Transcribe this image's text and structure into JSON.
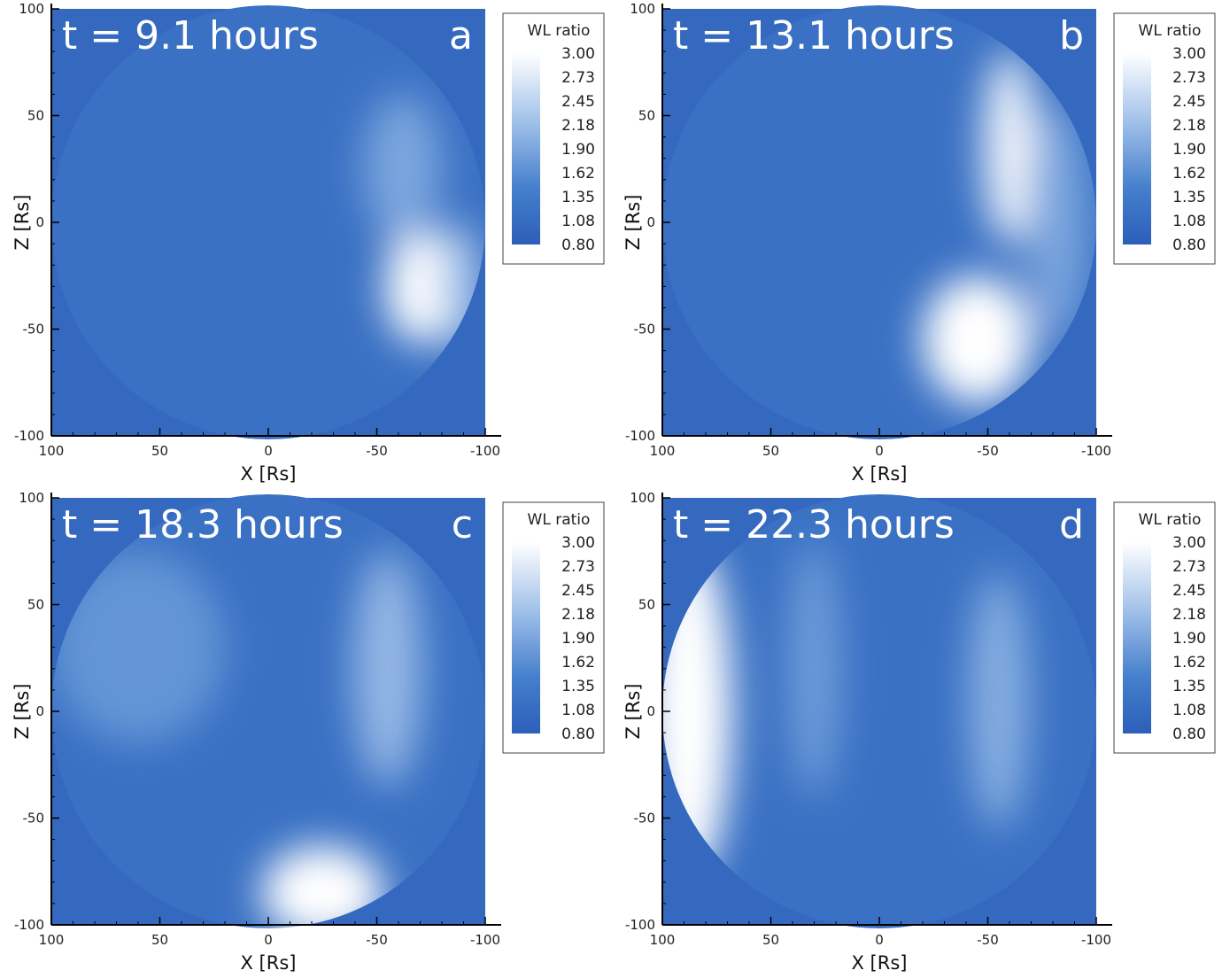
{
  "chart_data": [
    {
      "type": "heatmap",
      "panel": "a",
      "title": "t = 9.1 hours",
      "xlabel": "X [Rs]",
      "ylabel": "Z [Rs]",
      "xlim": [
        100,
        -100
      ],
      "ylim": [
        -100,
        100
      ],
      "xticks": [
        "100",
        "50",
        "0",
        "-50",
        "-100"
      ],
      "yticks": [
        "100",
        "50",
        "0",
        "-50",
        "-100"
      ],
      "colorbar": {
        "title": "WL ratio",
        "range": [
          0.8,
          3.0
        ],
        "labels": [
          "3.00",
          "2.73",
          "2.45",
          "2.18",
          "1.90",
          "1.62",
          "1.35",
          "1.08",
          "0.80"
        ]
      },
      "features": [
        {
          "x": -70,
          "z": -30,
          "rx": 16,
          "rz": 27,
          "value": 3.0
        },
        {
          "x": -62,
          "z": 25,
          "rx": 18,
          "rz": 35,
          "value": 1.9
        },
        {
          "x": -88,
          "z": -30,
          "rx": 10,
          "rz": 30,
          "value": 2.3
        }
      ]
    },
    {
      "type": "heatmap",
      "panel": "b",
      "title": "t = 13.1 hours",
      "xlabel": "X [Rs]",
      "ylabel": "Z [Rs]",
      "xlim": [
        100,
        -100
      ],
      "ylim": [
        -100,
        100
      ],
      "xticks": [
        "100",
        "50",
        "0",
        "-50",
        "-100"
      ],
      "yticks": [
        "100",
        "50",
        "0",
        "-50",
        "-100"
      ],
      "colorbar": {
        "title": "WL ratio",
        "range": [
          0.8,
          3.0
        ],
        "labels": [
          "3.00",
          "2.73",
          "2.45",
          "2.18",
          "1.90",
          "1.62",
          "1.35",
          "1.08",
          "0.80"
        ]
      },
      "features": [
        {
          "x": -45,
          "z": -55,
          "rx": 25,
          "rz": 30,
          "value": 3.0
        },
        {
          "x": -60,
          "z": 35,
          "rx": 12,
          "rz": 45,
          "value": 2.9
        },
        {
          "x": -82,
          "z": 0,
          "rx": 14,
          "rz": 55,
          "value": 1.9
        }
      ]
    },
    {
      "type": "heatmap",
      "panel": "c",
      "title": "t = 18.3 hours",
      "xlabel": "X [Rs]",
      "ylabel": "Z [Rs]",
      "xlim": [
        100,
        -100
      ],
      "ylim": [
        -100,
        100
      ],
      "xticks": [
        "100",
        "50",
        "0",
        "-50",
        "-100"
      ],
      "yticks": [
        "100",
        "50",
        "0",
        "-50",
        "-100"
      ],
      "colorbar": {
        "title": "WL ratio",
        "range": [
          0.8,
          3.0
        ],
        "labels": [
          "3.00",
          "2.73",
          "2.45",
          "2.18",
          "1.90",
          "1.62",
          "1.35",
          "1.08",
          "0.80"
        ]
      },
      "features": [
        {
          "x": -25,
          "z": -85,
          "rx": 28,
          "rz": 22,
          "value": 3.0
        },
        {
          "x": -55,
          "z": 20,
          "rx": 16,
          "rz": 55,
          "value": 2.1
        },
        {
          "x": 60,
          "z": 30,
          "rx": 40,
          "rz": 45,
          "value": 1.7
        }
      ]
    },
    {
      "type": "heatmap",
      "panel": "d",
      "title": "t = 22.3 hours",
      "xlabel": "X [Rs]",
      "ylabel": "Z [Rs]",
      "xlim": [
        100,
        -100
      ],
      "ylim": [
        -100,
        100
      ],
      "xticks": [
        "100",
        "50",
        "0",
        "-50",
        "-100"
      ],
      "yticks": [
        "100",
        "50",
        "0",
        "-50",
        "-100"
      ],
      "colorbar": {
        "title": "WL ratio",
        "range": [
          0.8,
          3.0
        ],
        "labels": [
          "3.00",
          "2.73",
          "2.45",
          "2.18",
          "1.90",
          "1.62",
          "1.35",
          "1.08",
          "0.80"
        ]
      },
      "features": [
        {
          "x": 88,
          "z": 0,
          "rx": 20,
          "rz": 80,
          "value": 3.0
        },
        {
          "x": -55,
          "z": 5,
          "rx": 14,
          "rz": 60,
          "value": 2.0
        },
        {
          "x": 30,
          "z": 20,
          "rx": 12,
          "rz": 60,
          "value": 1.8
        }
      ]
    }
  ]
}
